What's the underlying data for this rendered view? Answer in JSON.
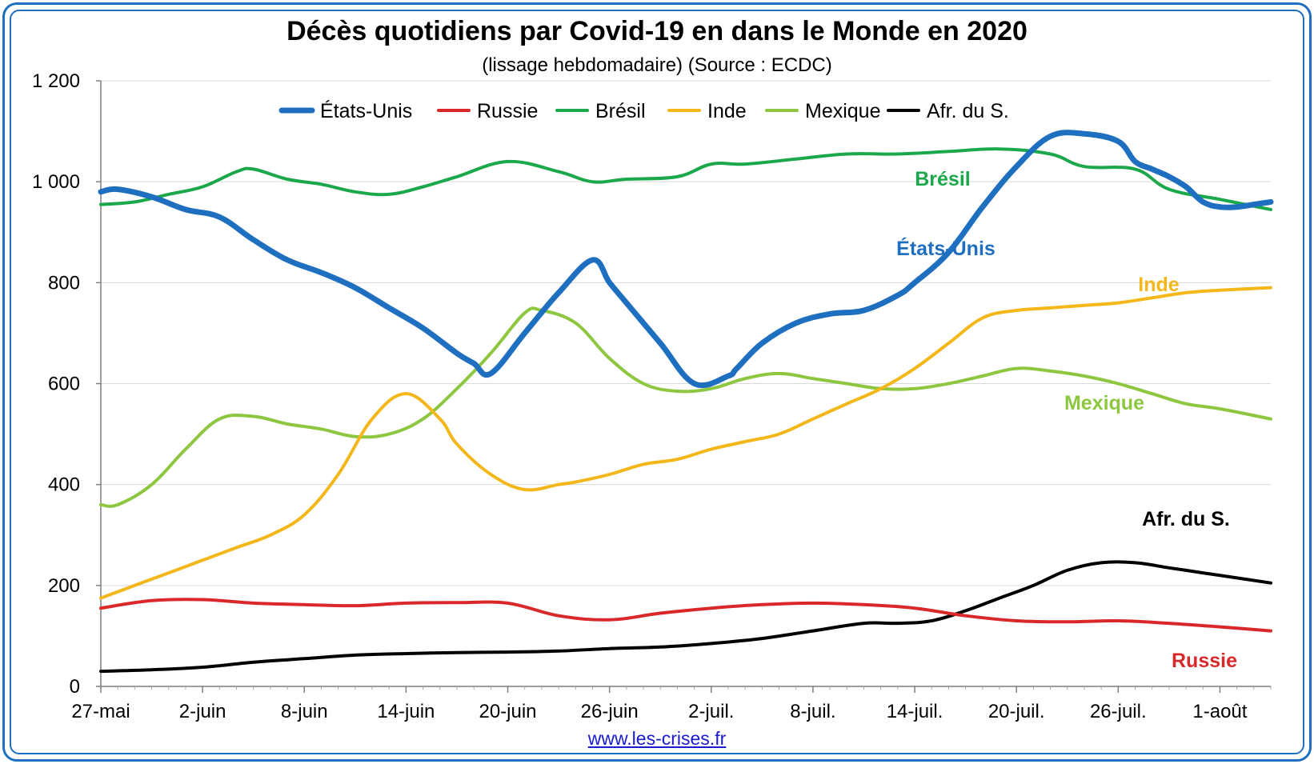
{
  "chart_data": {
    "type": "line",
    "title": "Décès quotidiens par Covid-19 en dans le Monde en 2020",
    "subtitle": "(lissage hebdomadaire) (Source : ECDC)",
    "xlabel": "",
    "ylabel": "",
    "x_ticks": [
      "27-mai",
      "2-juin",
      "8-juin",
      "14-juin",
      "20-juin",
      "26-juin",
      "2-juil.",
      "8-juil.",
      "14-juil.",
      "20-juil.",
      "26-juil.",
      "1-août"
    ],
    "y_ticks": [
      "0",
      "200",
      "400",
      "600",
      "800",
      "1 000",
      "1 200"
    ],
    "ylim": [
      0,
      1200
    ],
    "x_day_range": [
      0,
      69
    ],
    "grid": true,
    "legend_position": "top",
    "series": [
      {
        "name": "États-Unis",
        "color": "#1f6fc0",
        "label": "États-Unis",
        "x": [
          0,
          1,
          3,
          5,
          7,
          9,
          11,
          13,
          15,
          17,
          19,
          21,
          22,
          23,
          25,
          27,
          29,
          30,
          31,
          33,
          35,
          37,
          37.5,
          39,
          41,
          43,
          45,
          47,
          48,
          50,
          52,
          54,
          56,
          58,
          60,
          61,
          62,
          63,
          64,
          65,
          66,
          67,
          68,
          69
        ],
        "y": [
          980,
          985,
          970,
          945,
          930,
          885,
          845,
          820,
          790,
          750,
          710,
          660,
          640,
          620,
          700,
          780,
          845,
          800,
          760,
          680,
          600,
          615,
          630,
          680,
          720,
          738,
          745,
          775,
          800,
          860,
          950,
          1030,
          1090,
          1095,
          1080,
          1040,
          1025,
          1010,
          990,
          960,
          950,
          950,
          955,
          960
        ]
      },
      {
        "name": "Russie",
        "color": "#d9282a",
        "label": "Russie",
        "x": [
          0,
          3,
          6,
          9,
          12,
          15,
          18,
          21,
          24,
          27,
          30,
          33,
          36,
          39,
          42,
          45,
          48,
          51,
          54,
          57,
          60,
          63,
          66,
          69
        ],
        "y": [
          155,
          170,
          172,
          165,
          162,
          160,
          165,
          166,
          165,
          140,
          132,
          145,
          155,
          162,
          165,
          162,
          155,
          140,
          130,
          128,
          130,
          125,
          118,
          110
        ]
      },
      {
        "name": "Brésil",
        "color": "#1aa84a",
        "label": "Brésil",
        "x": [
          0,
          2,
          4,
          6,
          8,
          9,
          11,
          13,
          15,
          17,
          19,
          21,
          24,
          27,
          29,
          31,
          34,
          36,
          38,
          41,
          44,
          47,
          50,
          53,
          56,
          58,
          61,
          63,
          66,
          69
        ],
        "y": [
          955,
          960,
          975,
          990,
          1020,
          1025,
          1005,
          995,
          980,
          975,
          990,
          1010,
          1040,
          1020,
          1000,
          1005,
          1010,
          1035,
          1035,
          1045,
          1055,
          1055,
          1060,
          1065,
          1055,
          1030,
          1025,
          985,
          965,
          945
        ]
      },
      {
        "name": "Inde",
        "color": "#f4b71a",
        "label": "Inde",
        "x": [
          0,
          2,
          4,
          6,
          8,
          10,
          12,
          14,
          16,
          18,
          20,
          21,
          23,
          25,
          27,
          28,
          30,
          32,
          34,
          36,
          38,
          40,
          42,
          44,
          46,
          48,
          50,
          52,
          54,
          56,
          58,
          60,
          62,
          64,
          66,
          69
        ],
        "y": [
          175,
          200,
          225,
          250,
          275,
          300,
          340,
          420,
          530,
          580,
          530,
          480,
          420,
          390,
          400,
          405,
          420,
          440,
          450,
          470,
          485,
          500,
          530,
          560,
          590,
          630,
          680,
          730,
          745,
          750,
          755,
          760,
          770,
          780,
          785,
          790
        ]
      },
      {
        "name": "Mexique",
        "color": "#8dc63f",
        "label": "Mexique",
        "x": [
          0,
          1,
          3,
          5,
          7,
          9,
          11,
          13,
          15,
          17,
          19,
          21,
          23,
          25,
          26,
          28,
          30,
          32,
          34,
          36,
          38,
          40,
          42,
          44,
          46,
          48,
          50,
          52,
          54,
          56,
          58,
          60,
          62,
          64,
          66,
          69
        ],
        "y": [
          360,
          360,
          400,
          470,
          530,
          535,
          520,
          510,
          495,
          500,
          530,
          590,
          660,
          740,
          745,
          720,
          650,
          600,
          585,
          590,
          610,
          620,
          610,
          600,
          590,
          590,
          600,
          615,
          630,
          625,
          615,
          600,
          580,
          560,
          550,
          530
        ]
      },
      {
        "name": "Afr. du S.",
        "color": "#000000",
        "label": "Afr. du S.",
        "x": [
          0,
          3,
          6,
          9,
          12,
          15,
          18,
          21,
          24,
          27,
          30,
          33,
          36,
          39,
          42,
          45,
          47,
          49,
          51,
          53,
          55,
          57,
          59,
          61,
          63,
          65,
          67,
          69
        ],
        "y": [
          30,
          33,
          38,
          48,
          55,
          62,
          65,
          67,
          68,
          70,
          75,
          78,
          85,
          95,
          110,
          125,
          125,
          130,
          150,
          175,
          200,
          230,
          245,
          245,
          235,
          225,
          215,
          205
        ]
      }
    ]
  },
  "footer": {
    "link_text": "www.les-crises.fr"
  }
}
